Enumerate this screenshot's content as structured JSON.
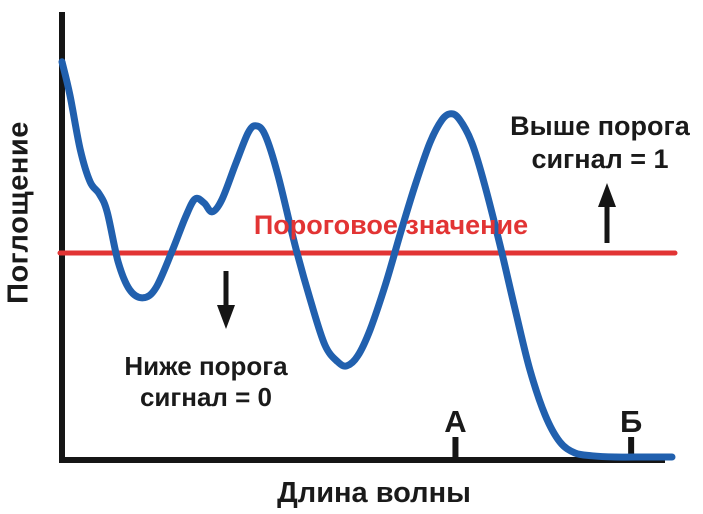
{
  "colors": {
    "curve": "#2160ae",
    "threshold": "#e23434",
    "axis": "#151515",
    "text": "#1a1a1a",
    "background": "#ffffff"
  },
  "chart_data": {
    "type": "line",
    "title": "",
    "xlabel": "Длина волны",
    "ylabel": "Поглощение",
    "x_range": [
      0,
      1
    ],
    "y_range": [
      0,
      1
    ],
    "grid": false,
    "legend": "none",
    "threshold": {
      "value": 0.52,
      "label": "Пороговое значение",
      "color": "#e23434"
    },
    "series": [
      {
        "name": "absorption-spectrum",
        "color": "#2160ae",
        "points": [
          [
            0.0,
            0.998
          ],
          [
            0.013,
            0.915
          ],
          [
            0.03,
            0.778
          ],
          [
            0.046,
            0.698
          ],
          [
            0.061,
            0.668
          ],
          [
            0.074,
            0.623
          ],
          [
            0.092,
            0.498
          ],
          [
            0.111,
            0.428
          ],
          [
            0.133,
            0.408
          ],
          [
            0.154,
            0.433
          ],
          [
            0.18,
            0.523
          ],
          [
            0.202,
            0.608
          ],
          [
            0.218,
            0.655
          ],
          [
            0.233,
            0.645
          ],
          [
            0.246,
            0.623
          ],
          [
            0.262,
            0.653
          ],
          [
            0.284,
            0.74
          ],
          [
            0.305,
            0.82
          ],
          [
            0.318,
            0.838
          ],
          [
            0.333,
            0.815
          ],
          [
            0.354,
            0.715
          ],
          [
            0.382,
            0.54
          ],
          [
            0.407,
            0.403
          ],
          [
            0.431,
            0.29
          ],
          [
            0.452,
            0.248
          ],
          [
            0.467,
            0.238
          ],
          [
            0.485,
            0.263
          ],
          [
            0.505,
            0.328
          ],
          [
            0.53,
            0.44
          ],
          [
            0.554,
            0.565
          ],
          [
            0.579,
            0.69
          ],
          [
            0.603,
            0.795
          ],
          [
            0.623,
            0.853
          ],
          [
            0.638,
            0.868
          ],
          [
            0.652,
            0.853
          ],
          [
            0.672,
            0.795
          ],
          [
            0.693,
            0.69
          ],
          [
            0.718,
            0.54
          ],
          [
            0.743,
            0.378
          ],
          [
            0.767,
            0.228
          ],
          [
            0.792,
            0.115
          ],
          [
            0.816,
            0.048
          ],
          [
            0.841,
            0.02
          ],
          [
            0.869,
            0.013
          ],
          [
            0.907,
            0.01
          ],
          [
            0.956,
            0.01
          ],
          [
            1.0,
            0.01
          ]
        ]
      }
    ],
    "x_markers": [
      {
        "label": "А",
        "x": 0.645
      },
      {
        "label": "Б",
        "x": 0.933
      }
    ],
    "annotations": [
      {
        "id": "above-threshold",
        "lines": [
          "Выше порога",
          "сигнал = 1"
        ],
        "arrow": "up"
      },
      {
        "id": "below-threshold",
        "lines": [
          "Ниже порога",
          "сигнал = 0"
        ],
        "arrow": "down"
      }
    ]
  }
}
